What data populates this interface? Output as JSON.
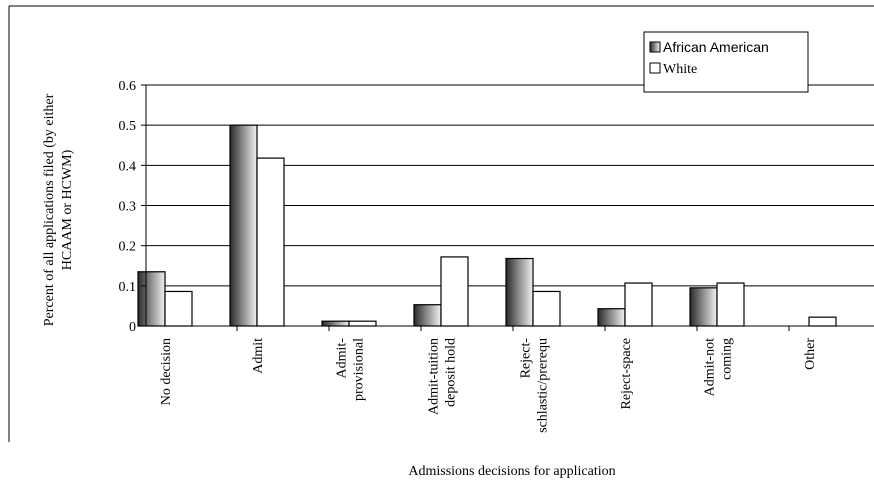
{
  "chart_data": {
    "type": "bar",
    "title": "",
    "xlabel": "Admissions decisions for application",
    "ylabel": "Percent of all applications filed (by either HCAAM or HCWM)",
    "ylabel_lines": [
      "Percent of all applications filed (by either",
      "HCAAM or HCWM)"
    ],
    "ylim": [
      0,
      0.6
    ],
    "yticks": [
      0,
      0.1,
      0.2,
      0.3,
      0.4,
      0.5,
      0.6
    ],
    "ytick_labels": [
      "0",
      "0.1",
      "0.2",
      "0.3",
      "0.4",
      "0.5",
      "0.6"
    ],
    "grid": true,
    "legend_position": "top-right",
    "categories": [
      [
        "No decision"
      ],
      [
        "Admit"
      ],
      [
        "Admit-",
        "provisional"
      ],
      [
        "Admit-tuition",
        "deposit hold"
      ],
      [
        "Reject-",
        "schlastic/prerequ"
      ],
      [
        "Reject-space"
      ],
      [
        "Admit-not",
        "coming"
      ],
      [
        "Other"
      ]
    ],
    "series": [
      {
        "name": "African American",
        "values": [
          0.135,
          0.5,
          0.012,
          0.053,
          0.168,
          0.043,
          0.095,
          0
        ],
        "fill": "gradient-gray"
      },
      {
        "name": "White",
        "values": [
          0.086,
          0.418,
          0.012,
          0.172,
          0.086,
          0.107,
          0.107,
          0.022
        ],
        "fill": "#ffffff"
      }
    ]
  }
}
